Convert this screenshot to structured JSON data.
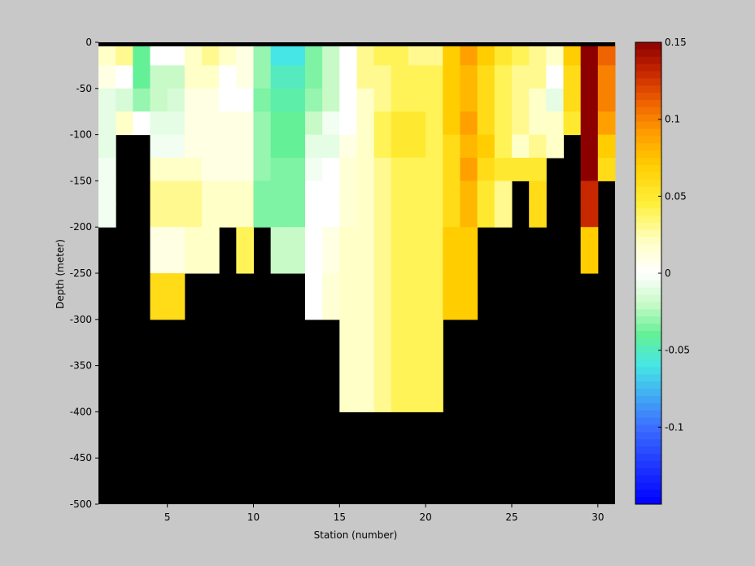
{
  "chart_data": {
    "type": "heatmap",
    "title": "",
    "xlabel": "Station (number)",
    "ylabel": "Depth (meter)",
    "xlim": [
      1,
      31
    ],
    "ylim": [
      -500,
      0
    ],
    "x_ticks": [
      5,
      10,
      15,
      20,
      25,
      30
    ],
    "y_ticks": [
      0,
      -50,
      -100,
      -150,
      -200,
      -250,
      -300,
      -350,
      -400,
      -450,
      -500
    ],
    "colorbar": {
      "colormap": "jet-white-center",
      "clim": [
        -0.15,
        0.15
      ],
      "ticks": [
        0.15,
        0.1,
        0.05,
        0,
        -0.05,
        -0.1
      ],
      "tick_labels": [
        "0.15",
        "0.1",
        "0.05",
        "0",
        "-0.05",
        "-0.1"
      ]
    },
    "mask_color": "#000000",
    "background_color": "#c8c8c8",
    "stations": [
      1,
      2,
      3,
      4,
      5,
      6,
      7,
      8,
      9,
      10,
      11,
      12,
      13,
      14,
      15,
      16,
      17,
      18,
      19,
      20,
      21,
      22,
      23,
      24,
      25,
      26,
      27,
      28,
      29,
      30
    ],
    "depth_levels": [
      0,
      -25,
      -50,
      -75,
      -100,
      -125,
      -150,
      -175,
      -200,
      -225,
      -250,
      -275,
      -300,
      -325,
      -350,
      -375,
      -400
    ],
    "values": [
      [
        0.02,
        0.01,
        -0.01,
        -0.01,
        -0.01,
        -0.005,
        -0.005,
        -0.005,
        null,
        null,
        null,
        null,
        null,
        null,
        null,
        null
      ],
      [
        0.03,
        0.0,
        -0.015,
        0.02,
        null,
        null,
        null,
        null,
        null,
        null,
        null,
        null,
        null,
        null,
        null,
        null
      ],
      [
        -0.04,
        -0.04,
        -0.03,
        0.0,
        null,
        null,
        null,
        null,
        null,
        null,
        null,
        null,
        null,
        null,
        null,
        null
      ],
      [
        0.0,
        -0.02,
        -0.02,
        -0.01,
        -0.005,
        0.02,
        0.03,
        0.03,
        0.01,
        0.01,
        0.06,
        0.06,
        null,
        null,
        null,
        null
      ],
      [
        0.0,
        -0.02,
        -0.015,
        -0.01,
        -0.005,
        0.02,
        0.03,
        0.03,
        0.01,
        0.01,
        0.06,
        0.06,
        null,
        null,
        null,
        null
      ],
      [
        0.02,
        0.02,
        0.01,
        0.01,
        0.01,
        0.02,
        0.03,
        0.03,
        0.02,
        0.02,
        null,
        null,
        null,
        null,
        null,
        null
      ],
      [
        0.03,
        0.02,
        0.01,
        0.01,
        0.01,
        0.01,
        0.02,
        0.02,
        0.02,
        0.02,
        null,
        null,
        null,
        null,
        null,
        null
      ],
      [
        0.02,
        0.0,
        0.0,
        0.01,
        0.01,
        0.01,
        0.02,
        0.02,
        null,
        null,
        null,
        null,
        null,
        null,
        null,
        null
      ],
      [
        0.01,
        0.01,
        0.0,
        0.01,
        0.01,
        0.01,
        0.02,
        0.02,
        0.04,
        0.04,
        null,
        null,
        null,
        null,
        null,
        null
      ],
      [
        -0.03,
        -0.03,
        -0.035,
        -0.03,
        -0.03,
        -0.03,
        -0.035,
        -0.035,
        null,
        null,
        null,
        null,
        null,
        null,
        null,
        null
      ],
      [
        -0.06,
        -0.05,
        -0.045,
        -0.04,
        -0.04,
        -0.035,
        -0.035,
        -0.035,
        -0.02,
        -0.02,
        null,
        null,
        null,
        null,
        null,
        null
      ],
      [
        -0.06,
        -0.05,
        -0.045,
        -0.04,
        -0.04,
        -0.035,
        -0.035,
        -0.035,
        -0.02,
        -0.02,
        null,
        null,
        null,
        null,
        null,
        null
      ],
      [
        -0.035,
        -0.035,
        -0.03,
        -0.02,
        -0.01,
        -0.005,
        0.0,
        0.0,
        0.0,
        0.0,
        0.0,
        0.0,
        null,
        null,
        null,
        null
      ],
      [
        -0.02,
        -0.02,
        -0.02,
        -0.005,
        -0.01,
        0.0,
        0.0,
        0.0,
        0.01,
        0.01,
        0.015,
        0.015,
        null,
        null,
        null,
        null
      ],
      [
        0.0,
        0.0,
        0.0,
        0.0,
        0.01,
        0.015,
        0.015,
        0.015,
        0.02,
        0.02,
        0.02,
        0.02,
        0.02,
        0.02,
        0.02,
        0.02
      ],
      [
        0.03,
        0.03,
        0.02,
        0.02,
        0.02,
        0.02,
        0.02,
        0.02,
        0.02,
        0.02,
        0.02,
        0.02,
        0.02,
        0.02,
        0.02,
        0.02
      ],
      [
        0.04,
        0.03,
        0.03,
        0.04,
        0.04,
        0.03,
        0.03,
        0.03,
        0.03,
        0.03,
        0.03,
        0.03,
        0.03,
        0.03,
        0.03,
        0.03
      ],
      [
        0.04,
        0.04,
        0.04,
        0.05,
        0.05,
        0.04,
        0.04,
        0.04,
        0.04,
        0.04,
        0.04,
        0.04,
        0.04,
        0.04,
        0.04,
        0.04
      ],
      [
        0.03,
        0.04,
        0.04,
        0.05,
        0.05,
        0.04,
        0.04,
        0.04,
        0.04,
        0.04,
        0.04,
        0.04,
        0.04,
        0.04,
        0.04,
        0.04
      ],
      [
        0.03,
        0.04,
        0.04,
        0.04,
        0.04,
        0.04,
        0.04,
        0.04,
        0.04,
        0.04,
        0.04,
        0.04,
        0.04,
        0.04,
        0.04,
        0.04
      ],
      [
        0.07,
        0.07,
        0.07,
        0.07,
        0.06,
        0.06,
        0.06,
        0.06,
        0.07,
        0.07,
        0.07,
        0.07,
        null,
        null,
        null,
        null
      ],
      [
        0.09,
        0.08,
        0.08,
        0.09,
        0.08,
        0.09,
        0.08,
        0.08,
        0.07,
        0.07,
        0.07,
        0.07,
        null,
        null,
        null,
        null
      ],
      [
        0.07,
        0.06,
        0.06,
        0.06,
        0.07,
        0.06,
        0.05,
        0.05,
        null,
        null,
        null,
        null,
        null,
        null,
        null,
        null
      ],
      [
        0.05,
        0.04,
        0.04,
        0.04,
        0.04,
        0.05,
        0.03,
        0.03,
        null,
        null,
        null,
        null,
        null,
        null,
        null,
        null
      ],
      [
        0.04,
        0.03,
        0.03,
        0.03,
        0.02,
        0.05,
        null,
        null,
        null,
        null,
        null,
        null,
        null,
        null,
        null,
        null
      ],
      [
        0.03,
        0.03,
        0.02,
        0.02,
        0.03,
        0.05,
        0.06,
        0.06,
        null,
        null,
        null,
        null,
        null,
        null,
        null,
        null
      ],
      [
        0.02,
        0.0,
        -0.01,
        0.02,
        0.02,
        null,
        null,
        null,
        null,
        null,
        null,
        null,
        null,
        null,
        null,
        null
      ],
      [
        0.07,
        0.06,
        0.06,
        0.05,
        null,
        null,
        null,
        null,
        null,
        null,
        null,
        null,
        null,
        null,
        null,
        null
      ],
      [
        0.15,
        0.15,
        0.15,
        0.15,
        0.15,
        0.15,
        0.13,
        0.13,
        0.07,
        0.07,
        null,
        null,
        null,
        null,
        null,
        null
      ],
      [
        0.11,
        0.1,
        0.1,
        0.09,
        0.07,
        0.06,
        null,
        null,
        null,
        null,
        null,
        null,
        null,
        null,
        null,
        null
      ]
    ]
  }
}
